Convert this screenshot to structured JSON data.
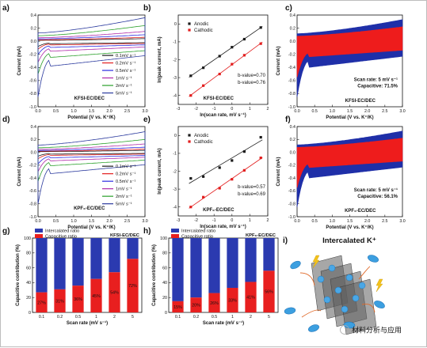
{
  "chart_data": [
    {
      "panel": "a)",
      "type": "line",
      "xlabel": "Potential (V vs. K⁺/K)",
      "ylabel": "Current (mA)",
      "xlim": [
        0,
        3
      ],
      "ylim": [
        -1.0,
        0.4
      ],
      "xticks": [
        0,
        0.5,
        1.0,
        1.5,
        2.0,
        2.5,
        3.0
      ],
      "yticks": [
        -1.0,
        -0.8,
        -0.6,
        -0.4,
        -0.2,
        0.0,
        0.2,
        0.4
      ],
      "annotation": "KFSI-EC/DEC",
      "series": [
        {
          "name": "0.1mV s⁻¹",
          "color": "#1a1a1a",
          "top": 0.04,
          "bottom": -0.04,
          "spike": -0.08
        },
        {
          "name": "0.2mV s⁻¹",
          "color": "#e21d1d",
          "top": 0.06,
          "bottom": -0.06,
          "spike": -0.12
        },
        {
          "name": "0.5mV s⁻¹",
          "color": "#2a2ae0",
          "top": 0.1,
          "bottom": -0.1,
          "spike": -0.2
        },
        {
          "name": "1mV s⁻¹",
          "color": "#b02aa8",
          "top": 0.15,
          "bottom": -0.16,
          "spike": -0.32
        },
        {
          "name": "2mV s⁻¹",
          "color": "#2aa02a",
          "top": 0.24,
          "bottom": -0.26,
          "spike": -0.5
        },
        {
          "name": "5mV s⁻¹",
          "color": "#2b3a9e",
          "top": 0.36,
          "bottom": -0.4,
          "spike": -0.85
        }
      ]
    },
    {
      "panel": "b)",
      "type": "scatter",
      "xlabel": "ln(scan rate, mV s⁻¹)",
      "ylabel": "ln(peak current, mA)",
      "xlim": [
        -3,
        2
      ],
      "ylim": [
        -4.5,
        0.5
      ],
      "xticks": [
        -3,
        -2,
        -1,
        0,
        1,
        2
      ],
      "yticks": [
        -4,
        -3,
        -2,
        -1,
        0
      ],
      "annotation": "KFSI-EC/DEC",
      "series": [
        {
          "name": "Anodic",
          "color": "#1a1a1a",
          "x": [
            -2.3,
            -1.6,
            -0.69,
            0,
            0.69,
            1.61
          ],
          "y": [
            -2.9,
            -2.45,
            -1.8,
            -1.3,
            -0.85,
            -0.2
          ]
        },
        {
          "name": "Cathodic",
          "color": "#e21d1d",
          "x": [
            -2.3,
            -1.6,
            -0.69,
            0,
            0.69,
            1.61
          ],
          "y": [
            -4.0,
            -3.45,
            -2.8,
            -2.25,
            -1.75,
            -1.1
          ]
        }
      ],
      "bvalues": [
        "b-value=0.70",
        "b-value=0.76"
      ]
    },
    {
      "panel": "c)",
      "type": "area",
      "xlabel": "Potential (V vs. K⁺/K)",
      "ylabel": "Current (mA)",
      "xlim": [
        0,
        3
      ],
      "ylim": [
        -1.0,
        0.4
      ],
      "xticks": [
        0,
        0.5,
        1.0,
        1.5,
        2.0,
        2.5,
        3.0
      ],
      "yticks": [
        -1.0,
        -0.8,
        -0.6,
        -0.4,
        -0.2,
        0.0,
        0.2,
        0.4
      ],
      "annotation": [
        "Scan rate: 5 mV s⁻¹",
        "Capacitive: 71.5%",
        "KFSI-EC/DEC"
      ]
    },
    {
      "panel": "d)",
      "type": "line",
      "xlabel": "Potential (V vs. K⁺/K)",
      "ylabel": "Current (mA)",
      "xlim": [
        0,
        3
      ],
      "ylim": [
        -1.0,
        0.4
      ],
      "xticks": [
        0,
        0.5,
        1.0,
        1.5,
        2.0,
        2.5,
        3.0
      ],
      "yticks": [
        -1.0,
        -0.8,
        -0.6,
        -0.4,
        -0.2,
        0.0,
        0.2,
        0.4
      ],
      "annotation": "KPF₆-EC/DEC",
      "series": [
        {
          "name": "0.1mV s⁻¹",
          "color": "#1a1a1a",
          "top": 0.03,
          "bottom": -0.03,
          "spike": -0.06
        },
        {
          "name": "0.2mV s⁻¹",
          "color": "#e21d1d",
          "top": 0.05,
          "bottom": -0.05,
          "spike": -0.1
        },
        {
          "name": "0.5mV s⁻¹",
          "color": "#2a2ae0",
          "top": 0.08,
          "bottom": -0.09,
          "spike": -0.18
        },
        {
          "name": "1mV s⁻¹",
          "color": "#b02aa8",
          "top": 0.13,
          "bottom": -0.14,
          "spike": -0.3
        },
        {
          "name": "2mV s⁻¹",
          "color": "#2aa02a",
          "top": 0.2,
          "bottom": -0.22,
          "spike": -0.45
        },
        {
          "name": "5mV s⁻¹",
          "color": "#2b3a9e",
          "top": 0.32,
          "bottom": -0.35,
          "spike": -0.8
        }
      ]
    },
    {
      "panel": "e)",
      "type": "scatter",
      "xlabel": "ln(scan rate, mV s⁻¹)",
      "ylabel": "ln(peak current, mA)",
      "xlim": [
        -3,
        2
      ],
      "ylim": [
        -4.5,
        0.5
      ],
      "xticks": [
        -3,
        -2,
        -1,
        0,
        1,
        2
      ],
      "yticks": [
        -4,
        -3,
        -2,
        -1,
        0
      ],
      "annotation": "KPF₆-EC/DEC",
      "series": [
        {
          "name": "Anodic",
          "color": "#1a1a1a",
          "x": [
            -2.3,
            -1.6,
            -0.69,
            0,
            0.69,
            1.61
          ],
          "y": [
            -2.4,
            -2.3,
            -1.8,
            -1.4,
            -0.9,
            -0.1
          ]
        },
        {
          "name": "Cathodic",
          "color": "#e21d1d",
          "x": [
            -2.3,
            -1.6,
            -0.69,
            0,
            0.69,
            1.61
          ],
          "y": [
            -4.0,
            -3.45,
            -2.95,
            -2.45,
            -1.95,
            -1.25
          ]
        }
      ],
      "bvalues": [
        "b-value=0.57",
        "b-value=0.69"
      ]
    },
    {
      "panel": "f)",
      "type": "area",
      "xlabel": "Potential (V vs. K⁺/K)",
      "ylabel": "Current (mA)",
      "xlim": [
        0,
        3
      ],
      "ylim": [
        -1.0,
        0.4
      ],
      "xticks": [
        0,
        0.5,
        1.0,
        1.5,
        2.0,
        2.5,
        3.0
      ],
      "yticks": [
        -1.0,
        -0.8,
        -0.6,
        -0.4,
        -0.2,
        0.0,
        0.2,
        0.4
      ],
      "annotation": [
        "Scan rate: 5 mV s⁻¹",
        "Capacitive: 56.1%",
        "KPF₆-EC/DEC"
      ]
    },
    {
      "panel": "g)",
      "type": "bar",
      "stacked": true,
      "xlabel": "Scan rate (mV s⁻¹)",
      "ylabel": "Capacitive contribution (%)",
      "ylim": [
        0,
        100
      ],
      "yticks": [
        0,
        20,
        40,
        60,
        80,
        100
      ],
      "categories": [
        "0.1",
        "0.2",
        "0.5",
        "1",
        "2",
        "5"
      ],
      "annotation": "KFSI-EC/DEC",
      "series": [
        {
          "name": "Intercalated ratio",
          "color": "#2b3ab0"
        },
        {
          "name": "Capacitive ratio",
          "color": "#e81f1f",
          "values": [
            27,
            31,
            36,
            45,
            54,
            72
          ],
          "labels": [
            "27%",
            "31%",
            "36%",
            "45%",
            "54%",
            "72%"
          ]
        }
      ]
    },
    {
      "panel": "h)",
      "type": "bar",
      "stacked": true,
      "xlabel": "Scan rate (mV s⁻¹)",
      "ylabel": "Capacitive contribution (%)",
      "ylim": [
        0,
        100
      ],
      "yticks": [
        0,
        20,
        40,
        60,
        80,
        100
      ],
      "categories": [
        "0.1",
        "0.2",
        "0.5",
        "1",
        "2",
        "5"
      ],
      "annotation": "KPF₆-EC/DEC",
      "series": [
        {
          "name": "Intercalated ratio",
          "color": "#2b3ab0"
        },
        {
          "name": "Capacitive ratio",
          "color": "#e81f1f",
          "values": [
            15,
            20,
            26,
            33,
            41,
            56
          ],
          "labels": [
            "15%",
            "20%",
            "26%",
            "33%",
            "41%",
            "56%"
          ]
        }
      ]
    }
  ],
  "panel_i": {
    "label": "i)",
    "title": "Intercalated K⁺",
    "watermark": "材料分析与应用"
  }
}
